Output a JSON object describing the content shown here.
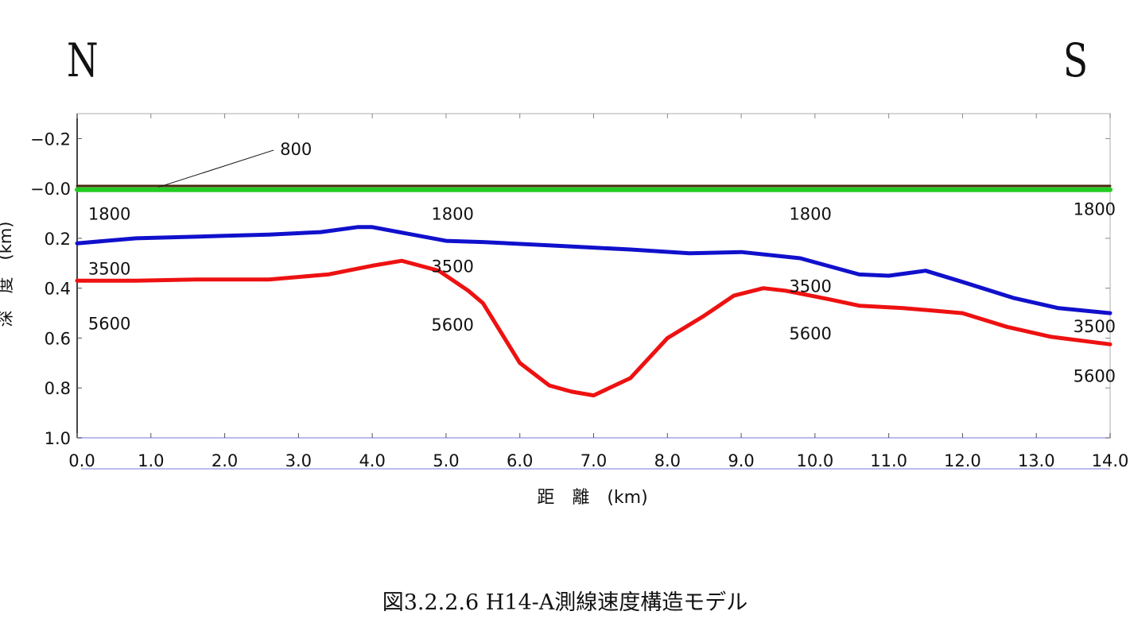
{
  "directions": {
    "left": "N",
    "right": "S"
  },
  "caption": "図3.2.2.6 H14-A測線速度構造モデル",
  "chart_data": {
    "type": "line",
    "title": "",
    "xlabel": "距　離　(km)",
    "ylabel": "深　度　(km)",
    "xlim": [
      0,
      14
    ],
    "ylim": [
      -0.3,
      1.0
    ],
    "y_inverted": true,
    "x_ticks": [
      "0.0",
      "1.0",
      "2.0",
      "3.0",
      "4.0",
      "5.0",
      "6.0",
      "7.0",
      "8.0",
      "9.0",
      "10.0",
      "11.0",
      "12.0",
      "13.0",
      "14.0"
    ],
    "x_tick_values": [
      0,
      1,
      2,
      3,
      4,
      5,
      6,
      7,
      8,
      9,
      10,
      11,
      12,
      13,
      14
    ],
    "y_ticks": [
      "−0.2",
      "−0.0",
      "0.2",
      "0.4",
      "0.6",
      "0.8",
      "1.0"
    ],
    "y_tick_values": [
      -0.2,
      0.0,
      0.2,
      0.4,
      0.6,
      0.8,
      1.0
    ],
    "grid": false,
    "series": [
      {
        "color": "#4a2a10",
        "x": [
          0,
          14
        ],
        "y": [
          -0.01,
          -0.01
        ]
      },
      {
        "color": "#22cc22",
        "x": [
          0,
          14
        ],
        "y": [
          0.005,
          0.005
        ]
      },
      {
        "color": "#1010cc",
        "x": [
          0,
          0.8,
          2.0,
          2.6,
          3.3,
          3.8,
          4.0,
          5.0,
          5.5,
          6.5,
          7.5,
          8.3,
          9.0,
          9.8,
          10.6,
          11.0,
          11.5,
          12.0,
          12.7,
          13.3,
          14.0
        ],
        "y": [
          0.22,
          0.2,
          0.19,
          0.185,
          0.175,
          0.155,
          0.155,
          0.21,
          0.215,
          0.23,
          0.245,
          0.26,
          0.255,
          0.28,
          0.345,
          0.35,
          0.33,
          0.375,
          0.44,
          0.48,
          0.5
        ]
      },
      {
        "color": "#ee1111",
        "x": [
          0,
          0.8,
          1.6,
          2.6,
          3.4,
          4.0,
          4.4,
          4.9,
          5.3,
          5.5,
          6.0,
          6.4,
          6.7,
          7.0,
          7.5,
          8.0,
          8.5,
          8.9,
          9.3,
          9.6,
          10.2,
          10.6,
          11.2,
          11.6,
          12.0,
          12.6,
          13.2,
          14.0
        ],
        "y": [
          0.37,
          0.37,
          0.365,
          0.365,
          0.345,
          0.31,
          0.29,
          0.33,
          0.41,
          0.46,
          0.7,
          0.79,
          0.815,
          0.83,
          0.76,
          0.6,
          0.51,
          0.43,
          0.4,
          0.41,
          0.445,
          0.47,
          0.48,
          0.49,
          0.5,
          0.555,
          0.595,
          0.625
        ]
      }
    ],
    "annotations": [
      {
        "text": "800",
        "x": 2.75,
        "y": -0.16,
        "leader_to": [
          1.1,
          -0.005
        ]
      },
      {
        "text": "1800",
        "x": 0.15,
        "y": 0.1
      },
      {
        "text": "1800",
        "x": 4.8,
        "y": 0.1
      },
      {
        "text": "1800",
        "x": 9.65,
        "y": 0.1
      },
      {
        "text": "1800",
        "x": 13.5,
        "y": 0.08
      },
      {
        "text": "3500",
        "x": 0.15,
        "y": 0.32
      },
      {
        "text": "3500",
        "x": 4.8,
        "y": 0.31
      },
      {
        "text": "3500",
        "x": 9.65,
        "y": 0.39
      },
      {
        "text": "3500",
        "x": 13.5,
        "y": 0.55
      },
      {
        "text": "5600",
        "x": 0.15,
        "y": 0.54
      },
      {
        "text": "5600",
        "x": 4.8,
        "y": 0.545
      },
      {
        "text": "5600",
        "x": 9.65,
        "y": 0.58
      },
      {
        "text": "5600",
        "x": 13.5,
        "y": 0.75
      }
    ]
  }
}
